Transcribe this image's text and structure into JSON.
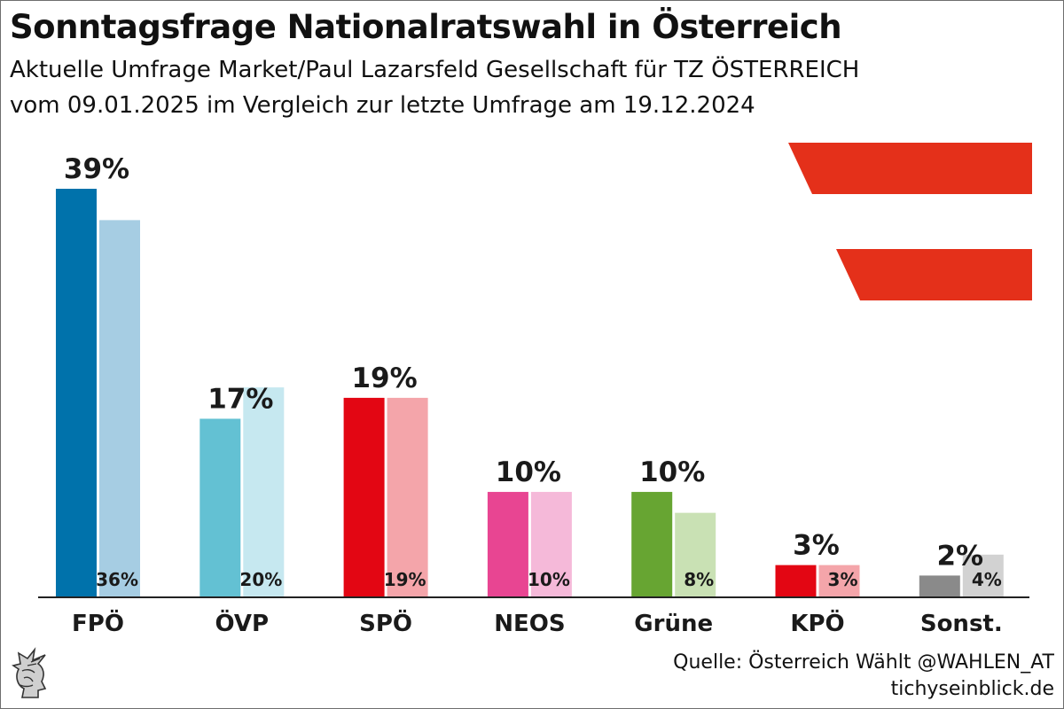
{
  "header": {
    "title": "Sonntagsfrage Nationalratswahl in Österreich",
    "subtitle_line1": "Aktuelle Umfrage Market/Paul Lazarsfeld Gesellschaft für TZ ÖSTERREICH",
    "subtitle_line2": "vom 09.01.2025 im Vergleich zur letzte Umfrage am 19.12.2024"
  },
  "footer": {
    "source": "Quelle: Österreich Wählt @WAHLEN_AT",
    "site": "tichyseinblick.de"
  },
  "colors": {
    "flag_red": "#e4301a",
    "axis": "#222222"
  },
  "chart_data": {
    "type": "bar",
    "title": "Sonntagsfrage Nationalratswahl in Österreich",
    "categories": [
      "FPÖ",
      "ÖVP",
      "SPÖ",
      "NEOS",
      "Grüne",
      "KPÖ",
      "Sonst."
    ],
    "series": [
      {
        "values": [
          39,
          17,
          19,
          10,
          10,
          3,
          2
        ],
        "labels": [
          "39%",
          "17%",
          "19%",
          "10%",
          "10%",
          "3%",
          "2%"
        ],
        "colors": [
          "#0072ab",
          "#63c1d3",
          "#e30613",
          "#e84592",
          "#67a532",
          "#e30613",
          "#8a8a8a"
        ]
      },
      {
        "values": [
          36,
          20,
          19,
          10,
          8,
          3,
          4
        ],
        "labels": [
          "36%",
          "20%",
          "19%",
          "10%",
          "8%",
          "3%",
          "4%"
        ],
        "colors": [
          "#a6cde3",
          "#c6e8f0",
          "#f4a5aa",
          "#f5b9d9",
          "#c9e1b4",
          "#f4a5aa",
          "#d2d2d2"
        ]
      }
    ],
    "ylim": [
      0,
      39
    ],
    "grid": false,
    "legend": "none"
  }
}
